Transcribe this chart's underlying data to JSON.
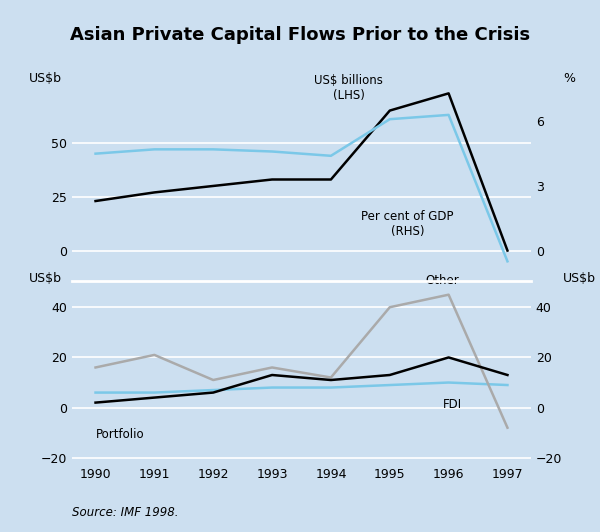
{
  "title": "Asian Private Capital Flows Prior to the Crisis",
  "background_color": "#ccdff0",
  "years": [
    1990,
    1991,
    1992,
    1993,
    1994,
    1995,
    1996,
    1997
  ],
  "top": {
    "lhs_label": "US$b",
    "rhs_label": "%",
    "usd_billions": [
      23,
      27,
      30,
      33,
      33,
      65,
      73,
      0
    ],
    "pct_gdp": [
      4.5,
      4.7,
      4.7,
      4.6,
      4.4,
      6.1,
      6.3,
      -0.5
    ],
    "usd_color": "#000000",
    "pct_color": "#7bc8e8",
    "ylim_left": [
      -10,
      83
    ],
    "ylim_right": [
      -1,
      8.3
    ],
    "yticks_left": [
      0,
      25,
      50
    ],
    "yticks_right": [
      0,
      3,
      6
    ],
    "label_usd": "US$ billions\n(LHS)",
    "label_pct": "Per cent of GDP\n(RHS)"
  },
  "bottom": {
    "lhs_label": "US$b",
    "rhs_label": "US$b",
    "other": [
      16,
      21,
      11,
      16,
      12,
      40,
      45,
      -8
    ],
    "fdi": [
      6,
      6,
      7,
      8,
      8,
      9,
      10,
      9
    ],
    "portfolio": [
      2,
      4,
      6,
      13,
      11,
      13,
      20,
      13
    ],
    "other_color": "#aaaaaa",
    "fdi_color": "#7bc8e8",
    "portfolio_color": "#000000",
    "ylim": [
      -22,
      54
    ],
    "yticks": [
      -20,
      0,
      20,
      40
    ],
    "label_other": "Other",
    "label_fdi": "FDI",
    "label_portfolio": "Portfolio"
  },
  "source": "Source: IMF 1998."
}
